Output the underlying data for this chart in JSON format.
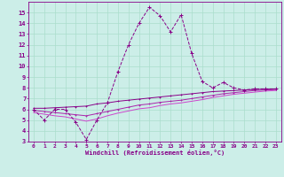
{
  "xlabel": "Windchill (Refroidissement éolien,°C)",
  "x": [
    0,
    1,
    2,
    3,
    4,
    5,
    6,
    7,
    8,
    9,
    10,
    11,
    12,
    13,
    14,
    15,
    16,
    17,
    18,
    19,
    20,
    21,
    22,
    23
  ],
  "line1": [
    6.0,
    5.0,
    6.0,
    6.0,
    4.8,
    3.2,
    5.0,
    6.6,
    9.5,
    12.0,
    14.0,
    15.5,
    14.7,
    13.2,
    14.8,
    11.2,
    8.6,
    8.0,
    8.5,
    8.0,
    7.8,
    7.9,
    7.9,
    7.9
  ],
  "line2": [
    6.1,
    6.1,
    6.15,
    6.2,
    6.25,
    6.3,
    6.5,
    6.6,
    6.75,
    6.85,
    6.95,
    7.05,
    7.15,
    7.25,
    7.35,
    7.45,
    7.55,
    7.65,
    7.7,
    7.75,
    7.8,
    7.85,
    7.87,
    7.9
  ],
  "line3": [
    5.9,
    5.8,
    5.7,
    5.6,
    5.5,
    5.4,
    5.6,
    5.8,
    6.0,
    6.2,
    6.4,
    6.5,
    6.65,
    6.75,
    6.85,
    7.0,
    7.15,
    7.3,
    7.45,
    7.55,
    7.65,
    7.75,
    7.8,
    7.85
  ],
  "line4": [
    5.7,
    5.55,
    5.4,
    5.3,
    5.1,
    4.9,
    5.1,
    5.4,
    5.65,
    5.85,
    6.05,
    6.15,
    6.35,
    6.5,
    6.6,
    6.75,
    6.9,
    7.1,
    7.25,
    7.4,
    7.5,
    7.6,
    7.7,
    7.75
  ],
  "color_dark": "#880088",
  "color_mid": "#aa22aa",
  "color_light": "#cc44cc",
  "bg_color": "#cceee8",
  "grid_color": "#aaddcc",
  "ylim": [
    3,
    16
  ],
  "xlim": [
    -0.5,
    23.5
  ],
  "yticks": [
    3,
    4,
    5,
    6,
    7,
    8,
    9,
    10,
    11,
    12,
    13,
    14,
    15
  ],
  "xticks": [
    0,
    1,
    2,
    3,
    4,
    5,
    6,
    7,
    8,
    9,
    10,
    11,
    12,
    13,
    14,
    15,
    16,
    17,
    18,
    19,
    20,
    21,
    22,
    23
  ]
}
